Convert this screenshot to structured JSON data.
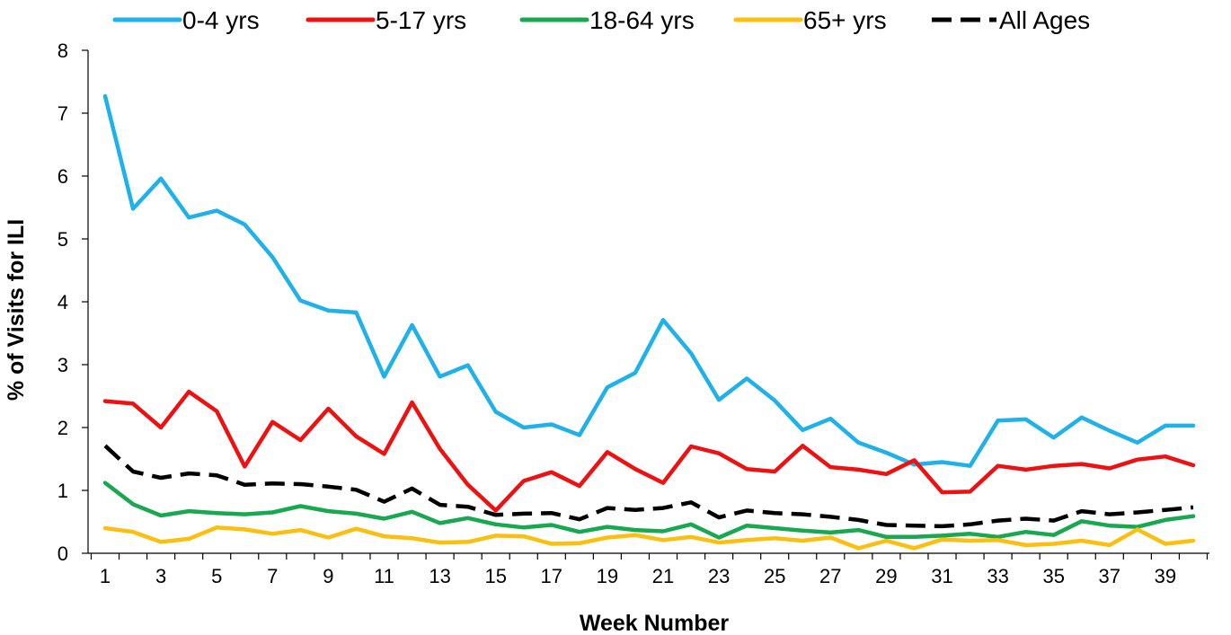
{
  "chart_data": {
    "type": "line",
    "xlabel": "Week Number",
    "ylabel": "% of Visits for ILI",
    "ylim": [
      0,
      8
    ],
    "yticks": [
      0,
      1,
      2,
      3,
      4,
      5,
      6,
      7,
      8
    ],
    "xticks": [
      1,
      3,
      5,
      7,
      9,
      11,
      13,
      15,
      17,
      19,
      21,
      23,
      25,
      27,
      29,
      31,
      33,
      35,
      37,
      39
    ],
    "x": [
      1,
      2,
      3,
      4,
      5,
      6,
      7,
      8,
      9,
      10,
      11,
      12,
      13,
      14,
      15,
      16,
      17,
      18,
      19,
      20,
      21,
      22,
      23,
      24,
      25,
      26,
      27,
      28,
      29,
      30,
      31,
      32,
      33,
      34,
      35,
      36,
      37,
      38,
      39,
      40
    ],
    "legend_position": "top",
    "grid": false,
    "series": [
      {
        "name": "0-4 yrs",
        "color": "#1fb1e9",
        "dashed": false,
        "values": [
          7.27,
          5.48,
          5.96,
          5.34,
          5.45,
          5.23,
          4.71,
          4.02,
          3.86,
          3.83,
          2.81,
          3.63,
          2.81,
          2.99,
          2.25,
          2.0,
          2.05,
          1.88,
          2.64,
          2.87,
          3.71,
          3.18,
          2.44,
          2.78,
          2.43,
          1.96,
          2.14,
          1.76,
          1.6,
          1.41,
          1.45,
          1.39,
          2.11,
          2.13,
          1.84,
          2.16,
          1.95,
          1.76,
          2.03,
          2.03
        ]
      },
      {
        "name": "5-17 yrs",
        "color": "#ee1111",
        "dashed": false,
        "values": [
          2.42,
          2.38,
          2.0,
          2.57,
          2.26,
          1.38,
          2.09,
          1.8,
          2.3,
          1.86,
          1.58,
          2.4,
          1.66,
          1.09,
          0.68,
          1.15,
          1.29,
          1.07,
          1.61,
          1.34,
          1.12,
          1.7,
          1.59,
          1.34,
          1.3,
          1.71,
          1.37,
          1.33,
          1.26,
          1.48,
          0.97,
          0.98,
          1.39,
          1.33,
          1.39,
          1.42,
          1.35,
          1.49,
          1.54,
          1.4
        ]
      },
      {
        "name": "18-64 yrs",
        "color": "#18a84f",
        "dashed": false,
        "values": [
          1.12,
          0.78,
          0.6,
          0.67,
          0.64,
          0.62,
          0.65,
          0.75,
          0.67,
          0.63,
          0.55,
          0.66,
          0.48,
          0.56,
          0.46,
          0.41,
          0.45,
          0.34,
          0.42,
          0.37,
          0.35,
          0.46,
          0.25,
          0.44,
          0.4,
          0.36,
          0.33,
          0.37,
          0.26,
          0.26,
          0.28,
          0.31,
          0.26,
          0.34,
          0.29,
          0.51,
          0.44,
          0.42,
          0.53,
          0.59
        ]
      },
      {
        "name": "65+ yrs",
        "color": "#fbbf0f",
        "dashed": false,
        "values": [
          0.4,
          0.34,
          0.18,
          0.23,
          0.41,
          0.38,
          0.31,
          0.37,
          0.25,
          0.39,
          0.27,
          0.24,
          0.17,
          0.18,
          0.28,
          0.27,
          0.15,
          0.16,
          0.25,
          0.29,
          0.21,
          0.26,
          0.17,
          0.21,
          0.24,
          0.2,
          0.25,
          0.08,
          0.2,
          0.08,
          0.22,
          0.2,
          0.21,
          0.13,
          0.15,
          0.2,
          0.13,
          0.38,
          0.15,
          0.2
        ]
      },
      {
        "name": "All Ages",
        "color": "#000000",
        "dashed": true,
        "values": [
          1.71,
          1.3,
          1.2,
          1.27,
          1.24,
          1.09,
          1.11,
          1.1,
          1.06,
          1.01,
          0.82,
          1.03,
          0.77,
          0.74,
          0.61,
          0.63,
          0.64,
          0.54,
          0.72,
          0.69,
          0.72,
          0.81,
          0.57,
          0.68,
          0.64,
          0.62,
          0.58,
          0.53,
          0.45,
          0.44,
          0.43,
          0.46,
          0.52,
          0.55,
          0.52,
          0.67,
          0.62,
          0.65,
          0.69,
          0.73
        ]
      }
    ]
  }
}
